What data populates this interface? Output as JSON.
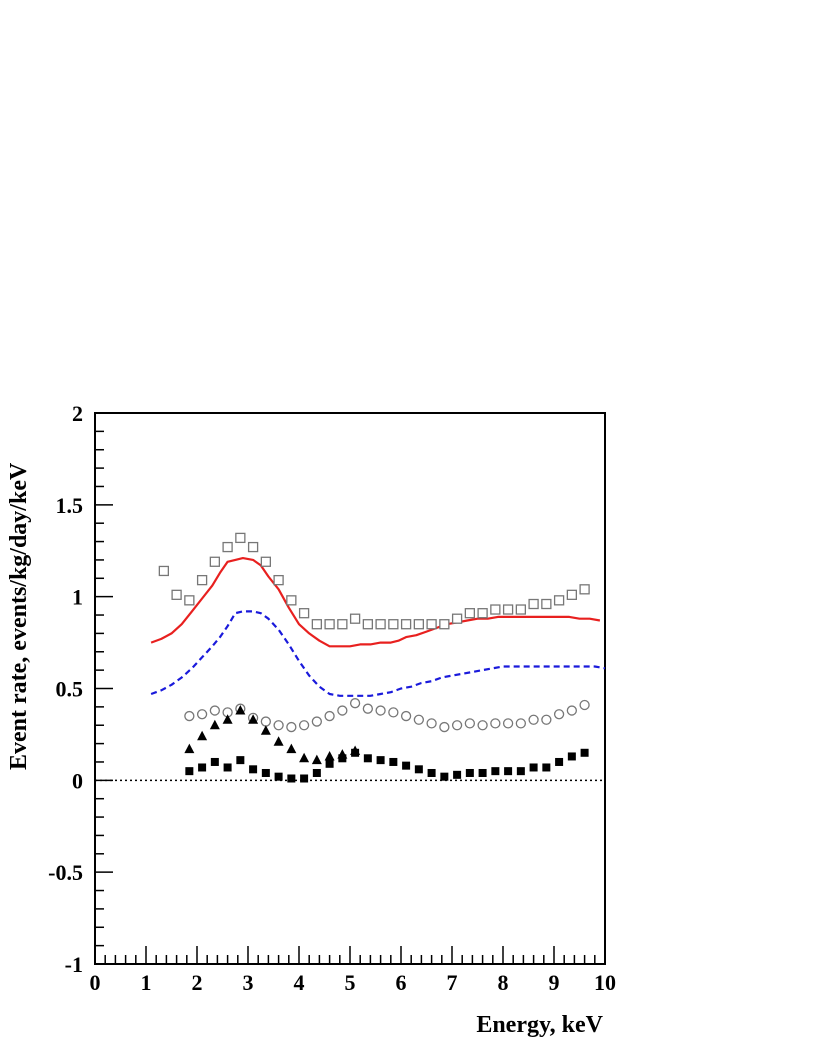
{
  "chart_data": {
    "type": "scatter",
    "title": "",
    "xlabel": "Energy, keV",
    "ylabel": "Event rate, events/kg/day/keV",
    "xlim": [
      0,
      10
    ],
    "ylim": [
      -1,
      2
    ],
    "x_ticks": [
      0,
      1,
      2,
      3,
      4,
      5,
      6,
      7,
      8,
      9,
      10
    ],
    "x_tick_labels": [
      "0",
      "1",
      "2",
      "3",
      "4",
      "5",
      "6",
      "7",
      "8",
      "9",
      "10"
    ],
    "y_ticks": [
      -1,
      -0.5,
      0,
      0.5,
      1,
      1.5,
      2
    ],
    "y_tick_labels": [
      "-1",
      "-0.5",
      "0",
      "0.5",
      "1",
      "1.5",
      "2"
    ],
    "grid": false,
    "reference_line": {
      "y": 0,
      "style": "dotted",
      "color": "#000000"
    },
    "series": [
      {
        "kind": "line",
        "style": "solid",
        "color": "#e8201f",
        "x": [
          1.1,
          1.3,
          1.5,
          1.7,
          1.9,
          2.1,
          2.3,
          2.45,
          2.6,
          2.75,
          2.9,
          3.1,
          3.25,
          3.4,
          3.6,
          3.8,
          4.0,
          4.2,
          4.4,
          4.6,
          4.8,
          5.0,
          5.2,
          5.4,
          5.6,
          5.8,
          5.95,
          6.1,
          6.3,
          6.5,
          6.7,
          6.9,
          7.1,
          7.3,
          7.5,
          7.7,
          7.9,
          8.1,
          8.3,
          8.5,
          8.7,
          8.9,
          9.1,
          9.3,
          9.5,
          9.7,
          9.9
        ],
        "y": [
          0.75,
          0.77,
          0.8,
          0.85,
          0.92,
          0.99,
          1.06,
          1.13,
          1.19,
          1.2,
          1.21,
          1.2,
          1.17,
          1.11,
          1.04,
          0.94,
          0.85,
          0.8,
          0.76,
          0.73,
          0.73,
          0.73,
          0.74,
          0.74,
          0.75,
          0.75,
          0.76,
          0.78,
          0.79,
          0.81,
          0.83,
          0.85,
          0.86,
          0.87,
          0.88,
          0.88,
          0.89,
          0.89,
          0.89,
          0.89,
          0.89,
          0.89,
          0.89,
          0.89,
          0.88,
          0.88,
          0.87
        ]
      },
      {
        "kind": "line",
        "style": "dashed",
        "color": "#1a1adb",
        "x": [
          1.1,
          1.3,
          1.5,
          1.7,
          1.9,
          2.1,
          2.3,
          2.45,
          2.6,
          2.75,
          2.9,
          3.1,
          3.25,
          3.4,
          3.6,
          3.8,
          4.0,
          4.2,
          4.4,
          4.6,
          4.8,
          5.0,
          5.2,
          5.4,
          5.6,
          5.8,
          6.0,
          6.2,
          6.4,
          6.6,
          6.8,
          7.0,
          7.2,
          7.4,
          7.6,
          7.8,
          8.0,
          8.2,
          8.4,
          8.6,
          8.8,
          9.0,
          9.2,
          9.4,
          9.6,
          9.8,
          10.0
        ],
        "y": [
          0.47,
          0.49,
          0.52,
          0.56,
          0.61,
          0.67,
          0.73,
          0.78,
          0.84,
          0.91,
          0.92,
          0.92,
          0.91,
          0.88,
          0.82,
          0.74,
          0.65,
          0.57,
          0.51,
          0.47,
          0.46,
          0.46,
          0.46,
          0.46,
          0.47,
          0.48,
          0.5,
          0.51,
          0.53,
          0.54,
          0.56,
          0.57,
          0.58,
          0.59,
          0.6,
          0.61,
          0.62,
          0.62,
          0.62,
          0.62,
          0.62,
          0.62,
          0.62,
          0.62,
          0.62,
          0.62,
          0.61
        ]
      },
      {
        "kind": "markers",
        "marker": "open-square",
        "color": "#777777",
        "x": [
          1.35,
          1.6,
          1.85,
          2.1,
          2.35,
          2.6,
          2.85,
          3.1,
          3.35,
          3.6,
          3.85,
          4.1,
          4.35,
          4.6,
          4.85,
          5.1,
          5.35,
          5.6,
          5.85,
          6.1,
          6.35,
          6.6,
          6.85,
          7.1,
          7.35,
          7.6,
          7.85,
          8.1,
          8.35,
          8.6,
          8.85,
          9.1,
          9.35,
          9.6
        ],
        "y": [
          1.14,
          1.01,
          0.98,
          1.09,
          1.19,
          1.27,
          1.32,
          1.27,
          1.19,
          1.09,
          0.98,
          0.91,
          0.85,
          0.85,
          0.85,
          0.88,
          0.85,
          0.85,
          0.85,
          0.85,
          0.85,
          0.85,
          0.85,
          0.88,
          0.91,
          0.91,
          0.93,
          0.93,
          0.93,
          0.96,
          0.96,
          0.98,
          1.01,
          1.04
        ]
      },
      {
        "kind": "markers",
        "marker": "open-circle",
        "color": "#777777",
        "x": [
          1.85,
          2.1,
          2.35,
          2.6,
          2.85,
          3.1,
          3.35,
          3.6,
          3.85,
          4.1,
          4.35,
          4.6,
          4.85,
          5.1,
          5.35,
          5.6,
          5.85,
          6.1,
          6.35,
          6.6,
          6.85,
          7.1,
          7.35,
          7.6,
          7.85,
          8.1,
          8.35,
          8.6,
          8.85,
          9.1,
          9.35,
          9.6
        ],
        "y": [
          0.35,
          0.36,
          0.38,
          0.37,
          0.39,
          0.34,
          0.32,
          0.3,
          0.29,
          0.3,
          0.32,
          0.35,
          0.38,
          0.42,
          0.39,
          0.38,
          0.37,
          0.35,
          0.33,
          0.31,
          0.29,
          0.3,
          0.31,
          0.3,
          0.31,
          0.31,
          0.31,
          0.33,
          0.33,
          0.36,
          0.38,
          0.41
        ]
      },
      {
        "kind": "markers",
        "marker": "filled-triangle",
        "color": "#000000",
        "x": [
          1.85,
          2.1,
          2.35,
          2.6,
          2.85,
          3.1,
          3.35,
          3.6,
          3.85,
          4.1,
          4.35,
          4.6,
          4.85,
          5.1
        ],
        "y": [
          0.17,
          0.24,
          0.3,
          0.33,
          0.38,
          0.33,
          0.27,
          0.21,
          0.17,
          0.12,
          0.11,
          0.13,
          0.14,
          0.16
        ]
      },
      {
        "kind": "markers",
        "marker": "filled-square",
        "color": "#000000",
        "x": [
          1.85,
          2.1,
          2.35,
          2.6,
          2.85,
          3.1,
          3.35,
          3.6,
          3.85,
          4.1,
          4.35,
          4.6,
          4.85,
          5.1,
          5.35,
          5.6,
          5.85,
          6.1,
          6.35,
          6.6,
          6.85,
          7.1,
          7.35,
          7.6,
          7.85,
          8.1,
          8.35,
          8.6,
          8.85,
          9.1,
          9.35,
          9.6
        ],
        "y": [
          0.05,
          0.07,
          0.1,
          0.07,
          0.11,
          0.06,
          0.04,
          0.02,
          0.01,
          0.01,
          0.04,
          0.09,
          0.12,
          0.15,
          0.12,
          0.11,
          0.1,
          0.08,
          0.06,
          0.04,
          0.02,
          0.03,
          0.04,
          0.04,
          0.05,
          0.05,
          0.05,
          0.07,
          0.07,
          0.1,
          0.13,
          0.15
        ]
      }
    ]
  }
}
